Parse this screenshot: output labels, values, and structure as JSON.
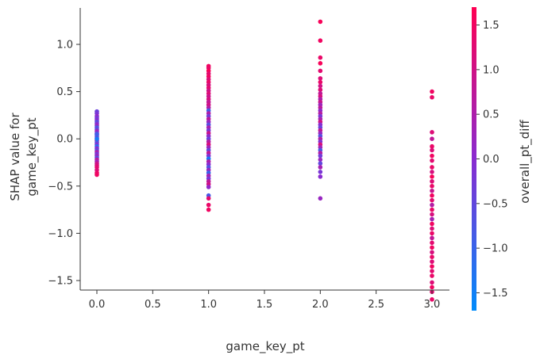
{
  "chart_data": {
    "type": "scatter",
    "title": "",
    "xlabel": "game_key_pt",
    "ylabel": [
      "SHAP value for",
      "game_key_pt"
    ],
    "xlim": [
      -0.15,
      3.15
    ],
    "ylim": [
      -1.85,
      1.37
    ],
    "x_ticks": [
      0.0,
      0.5,
      1.0,
      1.5,
      2.0,
      2.5,
      3.0
    ],
    "x_tick_labels": [
      "0.0",
      "0.5",
      "1.0",
      "1.5",
      "2.0",
      "2.5",
      "3.0"
    ],
    "y_ticks": [
      1.0,
      0.5,
      0.0,
      -0.5,
      -1.0,
      -1.5
    ],
    "y_tick_labels": [
      "1.0",
      "0.5",
      "0.0",
      "−0.5",
      "−1.0",
      "−1.5"
    ],
    "grid": false,
    "colorbar": {
      "label": "overall_pt_diff",
      "range": [
        -1.7,
        1.7
      ],
      "ticks": [
        1.5,
        1.0,
        0.5,
        0.0,
        -0.5,
        -1.0,
        -1.5
      ],
      "tick_labels": [
        "1.5",
        "1.0",
        "0.5",
        "0.0",
        "−0.5",
        "−1.0",
        "−1.5"
      ],
      "color_low": "#008bfb",
      "color_mid": "#8a2bd0",
      "color_high": "#ff0052"
    },
    "points": [
      {
        "x": 0,
        "y": 0.29,
        "c": -0.4
      },
      {
        "x": 0,
        "y": 0.27,
        "c": -0.2
      },
      {
        "x": 0,
        "y": 0.24,
        "c": 0.1
      },
      {
        "x": 0,
        "y": 0.22,
        "c": -0.3
      },
      {
        "x": 0,
        "y": 0.2,
        "c": 0.0
      },
      {
        "x": 0,
        "y": 0.18,
        "c": -0.6
      },
      {
        "x": 0,
        "y": 0.16,
        "c": -0.1
      },
      {
        "x": 0,
        "y": 0.14,
        "c": 0.2
      },
      {
        "x": 0,
        "y": 0.12,
        "c": -0.8
      },
      {
        "x": 0,
        "y": 0.1,
        "c": -0.4
      },
      {
        "x": 0,
        "y": 0.08,
        "c": 0.3
      },
      {
        "x": 0,
        "y": 0.06,
        "c": -0.2
      },
      {
        "x": 0,
        "y": 0.04,
        "c": -1.0
      },
      {
        "x": 0,
        "y": 0.02,
        "c": -0.5
      },
      {
        "x": 0,
        "y": 0.0,
        "c": -0.3
      },
      {
        "x": 0,
        "y": -0.02,
        "c": 0.4
      },
      {
        "x": 0,
        "y": -0.04,
        "c": -0.7
      },
      {
        "x": 0,
        "y": -0.06,
        "c": -0.1
      },
      {
        "x": 0,
        "y": -0.08,
        "c": -1.2
      },
      {
        "x": 0,
        "y": -0.1,
        "c": 0.0
      },
      {
        "x": 0,
        "y": -0.12,
        "c": -0.5
      },
      {
        "x": 0,
        "y": -0.14,
        "c": 0.5
      },
      {
        "x": 0,
        "y": -0.16,
        "c": -0.2
      },
      {
        "x": 0,
        "y": -0.18,
        "c": 0.2
      },
      {
        "x": 0,
        "y": -0.2,
        "c": -0.6
      },
      {
        "x": 0,
        "y": -0.22,
        "c": 0.7
      },
      {
        "x": 0,
        "y": -0.24,
        "c": 0.3
      },
      {
        "x": 0,
        "y": -0.26,
        "c": 0.9
      },
      {
        "x": 0,
        "y": -0.28,
        "c": 1.1
      },
      {
        "x": 0,
        "y": -0.3,
        "c": 1.3
      },
      {
        "x": 0,
        "y": -0.33,
        "c": 1.2
      },
      {
        "x": 0,
        "y": -0.36,
        "c": 1.4
      },
      {
        "x": 0,
        "y": -0.38,
        "c": 1.5
      },
      {
        "x": 0,
        "y": 0.0,
        "c": -1.4
      },
      {
        "x": 0,
        "y": 0.05,
        "c": -0.9
      },
      {
        "x": 1,
        "y": 0.77,
        "c": 1.5
      },
      {
        "x": 1,
        "y": 0.75,
        "c": 1.4
      },
      {
        "x": 1,
        "y": 0.72,
        "c": 1.6
      },
      {
        "x": 1,
        "y": 0.69,
        "c": 1.3
      },
      {
        "x": 1,
        "y": 0.66,
        "c": 1.5
      },
      {
        "x": 1,
        "y": 0.63,
        "c": 1.2
      },
      {
        "x": 1,
        "y": 0.6,
        "c": 1.4
      },
      {
        "x": 1,
        "y": 0.57,
        "c": 1.1
      },
      {
        "x": 1,
        "y": 0.54,
        "c": 1.3
      },
      {
        "x": 1,
        "y": 0.51,
        "c": 1.0
      },
      {
        "x": 1,
        "y": 0.48,
        "c": 1.2
      },
      {
        "x": 1,
        "y": 0.45,
        "c": 0.9
      },
      {
        "x": 1,
        "y": 0.42,
        "c": 1.1
      },
      {
        "x": 1,
        "y": 0.39,
        "c": 0.8
      },
      {
        "x": 1,
        "y": 0.36,
        "c": 1.0
      },
      {
        "x": 1,
        "y": 0.33,
        "c": 0.6
      },
      {
        "x": 1,
        "y": 0.3,
        "c": -0.9
      },
      {
        "x": 1,
        "y": 0.27,
        "c": 0.5
      },
      {
        "x": 1,
        "y": 0.24,
        "c": -0.3
      },
      {
        "x": 1,
        "y": 0.21,
        "c": 0.7
      },
      {
        "x": 1,
        "y": 0.18,
        "c": 0.2
      },
      {
        "x": 1,
        "y": 0.15,
        "c": -0.6
      },
      {
        "x": 1,
        "y": 0.12,
        "c": 0.4
      },
      {
        "x": 1,
        "y": 0.09,
        "c": -0.2
      },
      {
        "x": 1,
        "y": 0.06,
        "c": 0.9
      },
      {
        "x": 1,
        "y": 0.03,
        "c": 0.1
      },
      {
        "x": 1,
        "y": 0.0,
        "c": -0.4
      },
      {
        "x": 1,
        "y": -0.03,
        "c": 0.6
      },
      {
        "x": 1,
        "y": -0.06,
        "c": 1.1
      },
      {
        "x": 1,
        "y": -0.09,
        "c": 0.3
      },
      {
        "x": 1,
        "y": -0.12,
        "c": -0.5
      },
      {
        "x": 1,
        "y": -0.15,
        "c": 0.8
      },
      {
        "x": 1,
        "y": -0.18,
        "c": -0.1
      },
      {
        "x": 1,
        "y": -0.21,
        "c": -1.3
      },
      {
        "x": 1,
        "y": -0.24,
        "c": 0.5
      },
      {
        "x": 1,
        "y": -0.27,
        "c": 0.0
      },
      {
        "x": 1,
        "y": -0.3,
        "c": -0.7
      },
      {
        "x": 1,
        "y": -0.33,
        "c": 0.2
      },
      {
        "x": 1,
        "y": -0.36,
        "c": -1.0
      },
      {
        "x": 1,
        "y": -0.39,
        "c": 0.4
      },
      {
        "x": 1,
        "y": -0.42,
        "c": -0.2
      },
      {
        "x": 1,
        "y": -0.45,
        "c": 0.7
      },
      {
        "x": 1,
        "y": -0.48,
        "c": 1.0
      },
      {
        "x": 1,
        "y": -0.51,
        "c": 0.1
      },
      {
        "x": 1,
        "y": -0.6,
        "c": -0.8
      },
      {
        "x": 1,
        "y": -0.63,
        "c": 1.3
      },
      {
        "x": 1,
        "y": -0.7,
        "c": 1.4
      },
      {
        "x": 1,
        "y": -0.75,
        "c": 1.5
      },
      {
        "x": 2,
        "y": 1.24,
        "c": 1.6
      },
      {
        "x": 2,
        "y": 1.04,
        "c": 1.5
      },
      {
        "x": 2,
        "y": 0.86,
        "c": 1.4
      },
      {
        "x": 2,
        "y": 0.8,
        "c": 1.6
      },
      {
        "x": 2,
        "y": 0.72,
        "c": 1.3
      },
      {
        "x": 2,
        "y": 0.64,
        "c": 1.2
      },
      {
        "x": 2,
        "y": 0.6,
        "c": 1.4
      },
      {
        "x": 2,
        "y": 0.56,
        "c": 1.0
      },
      {
        "x": 2,
        "y": 0.52,
        "c": 1.2
      },
      {
        "x": 2,
        "y": 0.48,
        "c": 0.8
      },
      {
        "x": 2,
        "y": 0.45,
        "c": 1.1
      },
      {
        "x": 2,
        "y": 0.42,
        "c": 0.5
      },
      {
        "x": 2,
        "y": 0.39,
        "c": 0.9
      },
      {
        "x": 2,
        "y": 0.36,
        "c": 0.3
      },
      {
        "x": 2,
        "y": 0.33,
        "c": 0.7
      },
      {
        "x": 2,
        "y": 0.3,
        "c": 0.1
      },
      {
        "x": 2,
        "y": 0.27,
        "c": 0.6
      },
      {
        "x": 2,
        "y": 0.24,
        "c": -0.2
      },
      {
        "x": 2,
        "y": 0.21,
        "c": 0.4
      },
      {
        "x": 2,
        "y": 0.18,
        "c": 1.0
      },
      {
        "x": 2,
        "y": 0.15,
        "c": 0.0
      },
      {
        "x": 2,
        "y": 0.12,
        "c": -0.4
      },
      {
        "x": 2,
        "y": 0.09,
        "c": 0.8
      },
      {
        "x": 2,
        "y": 0.06,
        "c": 0.2
      },
      {
        "x": 2,
        "y": 0.03,
        "c": -0.6
      },
      {
        "x": 2,
        "y": 0.0,
        "c": 0.5
      },
      {
        "x": 2,
        "y": -0.03,
        "c": -0.1
      },
      {
        "x": 2,
        "y": -0.06,
        "c": 1.1
      },
      {
        "x": 2,
        "y": -0.09,
        "c": 0.3
      },
      {
        "x": 2,
        "y": -0.12,
        "c": -0.8
      },
      {
        "x": 2,
        "y": -0.15,
        "c": 0.6
      },
      {
        "x": 2,
        "y": -0.18,
        "c": -0.3
      },
      {
        "x": 2,
        "y": -0.22,
        "c": 0.2
      },
      {
        "x": 2,
        "y": -0.26,
        "c": -0.5
      },
      {
        "x": 2,
        "y": -0.3,
        "c": 0.4
      },
      {
        "x": 2,
        "y": -0.35,
        "c": -0.2
      },
      {
        "x": 2,
        "y": -0.4,
        "c": 0.0
      },
      {
        "x": 2,
        "y": -0.63,
        "c": 0.2
      },
      {
        "x": 3,
        "y": 0.5,
        "c": 1.5
      },
      {
        "x": 3,
        "y": 0.44,
        "c": 1.4
      },
      {
        "x": 3,
        "y": 0.07,
        "c": 1.2
      },
      {
        "x": 3,
        "y": 0.0,
        "c": 0.8
      },
      {
        "x": 3,
        "y": -0.08,
        "c": 1.4
      },
      {
        "x": 3,
        "y": -0.12,
        "c": 1.2
      },
      {
        "x": 3,
        "y": -0.18,
        "c": 1.5
      },
      {
        "x": 3,
        "y": -0.23,
        "c": 1.3
      },
      {
        "x": 3,
        "y": -0.3,
        "c": 1.4
      },
      {
        "x": 3,
        "y": -0.35,
        "c": 1.1
      },
      {
        "x": 3,
        "y": -0.4,
        "c": 1.6
      },
      {
        "x": 3,
        "y": -0.45,
        "c": 1.2
      },
      {
        "x": 3,
        "y": -0.5,
        "c": 1.4
      },
      {
        "x": 3,
        "y": -0.55,
        "c": 0.9
      },
      {
        "x": 3,
        "y": -0.6,
        "c": 1.5
      },
      {
        "x": 3,
        "y": -0.65,
        "c": 1.3
      },
      {
        "x": 3,
        "y": -0.7,
        "c": 0.6
      },
      {
        "x": 3,
        "y": -0.75,
        "c": 1.4
      },
      {
        "x": 3,
        "y": -0.8,
        "c": 1.1
      },
      {
        "x": 3,
        "y": -0.85,
        "c": 0.4
      },
      {
        "x": 3,
        "y": -0.9,
        "c": 1.5
      },
      {
        "x": 3,
        "y": -0.95,
        "c": 1.2
      },
      {
        "x": 3,
        "y": -1.0,
        "c": 1.4
      },
      {
        "x": 3,
        "y": -1.05,
        "c": 0.8
      },
      {
        "x": 3,
        "y": -1.1,
        "c": 1.3
      },
      {
        "x": 3,
        "y": -1.15,
        "c": 1.5
      },
      {
        "x": 3,
        "y": -1.2,
        "c": 1.1
      },
      {
        "x": 3,
        "y": -1.25,
        "c": 1.4
      },
      {
        "x": 3,
        "y": -1.3,
        "c": 1.2
      },
      {
        "x": 3,
        "y": -1.35,
        "c": 1.5
      },
      {
        "x": 3,
        "y": -1.4,
        "c": 1.3
      },
      {
        "x": 3,
        "y": -1.45,
        "c": 1.4
      },
      {
        "x": 3,
        "y": -1.52,
        "c": 1.2
      },
      {
        "x": 3,
        "y": -1.57,
        "c": 1.5
      },
      {
        "x": 3,
        "y": -1.62,
        "c": 1.3
      },
      {
        "x": 3,
        "y": -1.7,
        "c": 1.4
      }
    ]
  }
}
